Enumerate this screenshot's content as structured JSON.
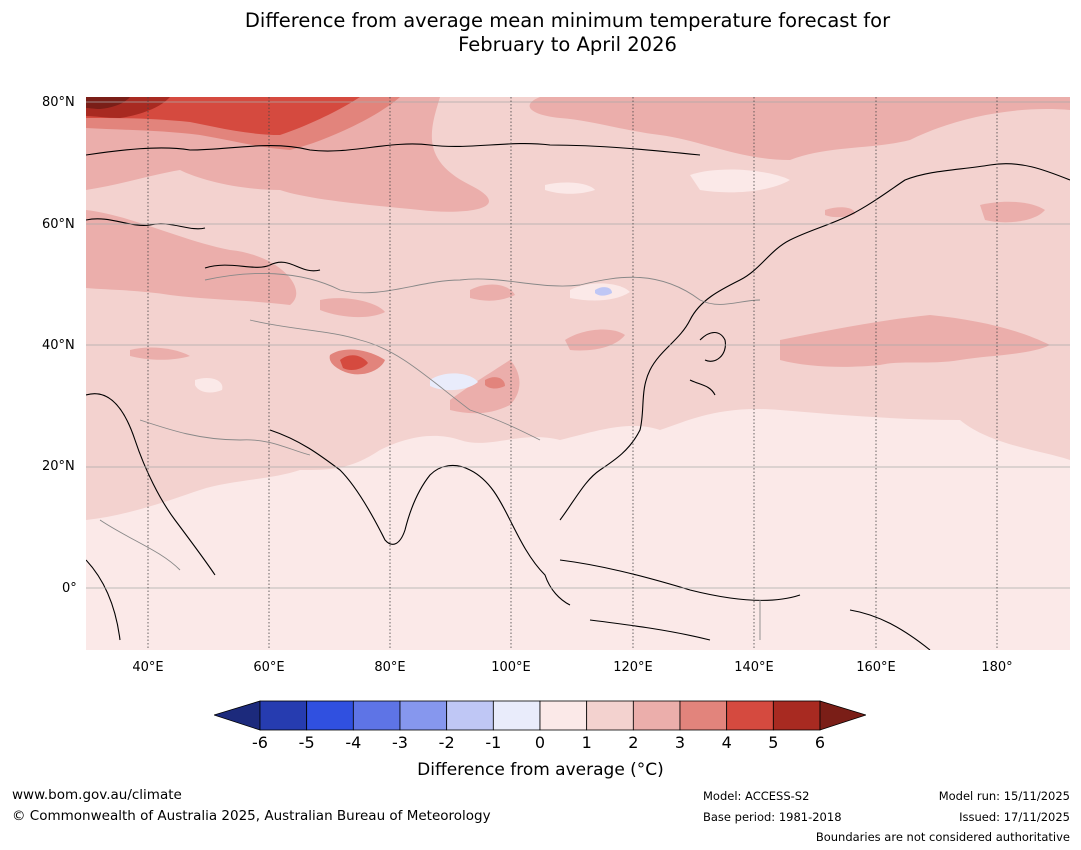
{
  "header": {
    "title_line1": "Difference from average mean minimum temperature forecast for",
    "title_line2": "February to April 2026"
  },
  "map": {
    "lat_labels": [
      "80°N",
      "60°N",
      "40°N",
      "20°N",
      "0°"
    ],
    "lon_labels": [
      "40°E",
      "60°E",
      "80°E",
      "100°E",
      "120°E",
      "140°E",
      "160°E",
      "180°"
    ],
    "colors": {
      "ocean_base": "#fbe9e8",
      "anomaly_1_2": "#f3d2cf",
      "anomaly_2_3": "#ebaeab",
      "anomaly_3_4": "#e2847c",
      "anomaly_4_5": "#d54a3f",
      "anomaly_5_6": "#a82a21",
      "anomaly_gt6": "#7a1e17",
      "anomaly_0_neg1": "#e9ecfb"
    }
  },
  "legend": {
    "ticks": [
      "-6",
      "-5",
      "-4",
      "-3",
      "-2",
      "-1",
      "0",
      "1",
      "2",
      "3",
      "4",
      "5",
      "6"
    ],
    "colors": [
      "#1c2a7c",
      "#263cb0",
      "#3050e0",
      "#5e74e6",
      "#8697ee",
      "#bfc7f5",
      "#e9ecfb",
      "#fbe9e8",
      "#f3d2cf",
      "#ebaeab",
      "#e2847c",
      "#d54a3f",
      "#a82a21",
      "#7a1e17"
    ],
    "label": "Difference from average (°C)"
  },
  "footer": {
    "website": "www.bom.gov.au/climate",
    "copyright": "© Commonwealth of Australia 2025, Australian Bureau of Meteorology",
    "model": "Model: ACCESS-S2",
    "base_period": "Base period: 1981-2018",
    "model_run": "Model run: 15/11/2025",
    "issued": "Issued: 17/11/2025",
    "disclaimer": "Boundaries are not considered authoritative"
  }
}
